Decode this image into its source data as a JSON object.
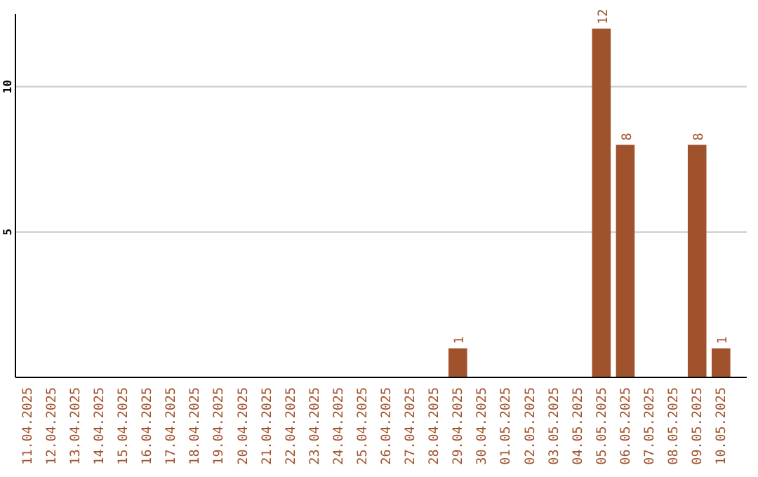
{
  "chart_data": {
    "type": "bar",
    "categories": [
      "11.04.2025",
      "12.04.2025",
      "13.04.2025",
      "14.04.2025",
      "15.04.2025",
      "16.04.2025",
      "17.04.2025",
      "18.04.2025",
      "19.04.2025",
      "20.04.2025",
      "21.04.2025",
      "22.04.2025",
      "23.04.2025",
      "24.04.2025",
      "25.04.2025",
      "26.04.2025",
      "27.04.2025",
      "28.04.2025",
      "29.04.2025",
      "30.04.2025",
      "01.05.2025",
      "02.05.2025",
      "03.05.2025",
      "04.05.2025",
      "05.05.2025",
      "06.05.2025",
      "07.05.2025",
      "08.05.2025",
      "09.05.2025",
      "10.05.2025"
    ],
    "values": [
      0,
      0,
      0,
      0,
      0,
      0,
      0,
      0,
      0,
      0,
      0,
      0,
      0,
      0,
      0,
      0,
      0,
      0,
      1,
      0,
      0,
      0,
      0,
      0,
      12,
      8,
      0,
      0,
      8,
      1
    ],
    "value_labels": [
      null,
      null,
      null,
      null,
      null,
      null,
      null,
      null,
      null,
      null,
      null,
      null,
      null,
      null,
      null,
      null,
      null,
      null,
      "1",
      null,
      null,
      null,
      null,
      null,
      "12",
      "8",
      null,
      null,
      "8",
      "1"
    ],
    "color": "#a0522d",
    "ylim": [
      0,
      12.5
    ],
    "yticks": [
      5,
      10
    ],
    "grid": "y"
  }
}
